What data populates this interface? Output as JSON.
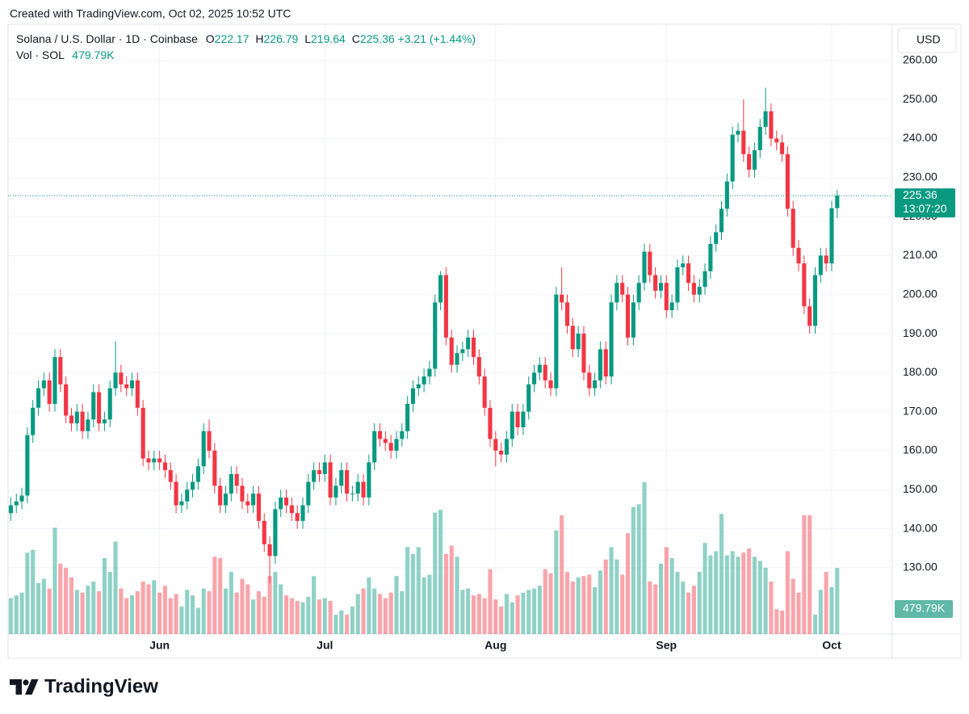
{
  "chart_data": {
    "type": "candlestick",
    "created": "Created with TradingView.com, Oct 02, 2025 10:52 UTC",
    "title": "Solana / U.S. Dollar · 1D · Coinbase",
    "ohlc_labels": [
      "O",
      "H",
      "L",
      "C"
    ],
    "change": "+3.21 (+1.44%)",
    "volume_title": "Vol · SOL",
    "currency": "USD",
    "countdown": "13:07:20",
    "brand": "TradingView",
    "up_color": "#089981",
    "down_color": "#f23645",
    "grid": true,
    "xlim": [
      -0.5,
      160
    ],
    "ylim": [
      113,
      269.3
    ],
    "xticks": [
      {
        "value": 27,
        "label": "Jun"
      },
      {
        "value": 57,
        "label": "Jul"
      },
      {
        "value": 88,
        "label": "Aug"
      },
      {
        "value": 119,
        "label": "Sep"
      },
      {
        "value": 149,
        "label": "Oct"
      }
    ],
    "yticks": [
      {
        "value": 130,
        "label": "130.00"
      },
      {
        "value": 140,
        "label": "140.00"
      },
      {
        "value": 150,
        "label": "150.00"
      },
      {
        "value": 160,
        "label": "160.00"
      },
      {
        "value": 170,
        "label": "170.00"
      },
      {
        "value": 180,
        "label": "180.00"
      },
      {
        "value": 190,
        "label": "190.00"
      },
      {
        "value": 200,
        "label": "200.00"
      },
      {
        "value": 210,
        "label": "210.00"
      },
      {
        "value": 220,
        "label": "220.00"
      },
      {
        "value": 230,
        "label": "230.00"
      },
      {
        "value": 240,
        "label": "240.00"
      },
      {
        "value": 250,
        "label": "250.00"
      },
      {
        "value": 260,
        "label": "260.00"
      }
    ],
    "x": [
      0,
      1,
      2,
      3,
      4,
      5,
      6,
      7,
      8,
      9,
      10,
      11,
      12,
      13,
      14,
      15,
      16,
      17,
      18,
      19,
      20,
      21,
      22,
      23,
      24,
      25,
      26,
      27,
      28,
      29,
      30,
      31,
      32,
      33,
      34,
      35,
      36,
      37,
      38,
      39,
      40,
      41,
      42,
      43,
      44,
      45,
      46,
      47,
      48,
      49,
      50,
      51,
      52,
      53,
      54,
      55,
      56,
      57,
      58,
      59,
      60,
      61,
      62,
      63,
      64,
      65,
      66,
      67,
      68,
      69,
      70,
      71,
      72,
      73,
      74,
      75,
      76,
      77,
      78,
      79,
      80,
      81,
      82,
      83,
      84,
      85,
      86,
      87,
      88,
      89,
      90,
      91,
      92,
      93,
      94,
      95,
      96,
      97,
      98,
      99,
      100,
      101,
      102,
      103,
      104,
      105,
      106,
      107,
      108,
      109,
      110,
      111,
      112,
      113,
      114,
      115,
      116,
      117,
      118,
      119,
      120,
      121,
      122,
      123,
      124,
      125,
      126,
      127,
      128,
      129,
      130,
      131,
      132,
      133,
      134,
      135,
      136,
      137,
      138,
      139,
      140,
      141,
      142,
      143,
      144,
      145,
      146,
      147,
      148,
      149,
      150
    ],
    "open": [
      144,
      146,
      147,
      148.5,
      164,
      171,
      176,
      178,
      172,
      184,
      177,
      169,
      167,
      170,
      165,
      168,
      175,
      167,
      168,
      176,
      180,
      177,
      176,
      178,
      171,
      158,
      157,
      158,
      157,
      155,
      152,
      146,
      147,
      150,
      152,
      156,
      165,
      160,
      151,
      146,
      149,
      154,
      151,
      147,
      146,
      149,
      142,
      136,
      133,
      145,
      148,
      146,
      144,
      142,
      146,
      152,
      155,
      154,
      157,
      148,
      151,
      155,
      149,
      149,
      152,
      148,
      157,
      165,
      163,
      162,
      160,
      163,
      165,
      172,
      176,
      177,
      179,
      181,
      198,
      205,
      189,
      182,
      185,
      186,
      189,
      184,
      179,
      171,
      163,
      160,
      159,
      163,
      170,
      166,
      170,
      177,
      180,
      182,
      178,
      176,
      200,
      198,
      192,
      186,
      190,
      180,
      176,
      178,
      186,
      179,
      198,
      203,
      200,
      189,
      198,
      203,
      211,
      205,
      201,
      203,
      196,
      198,
      207,
      208,
      203,
      200,
      202,
      206,
      213,
      216,
      222,
      229,
      241,
      242,
      236,
      232,
      237,
      243,
      247,
      240,
      239,
      236,
      222,
      212,
      208,
      197,
      192,
      205,
      210,
      208,
      222.17
    ],
    "high": [
      148,
      149,
      150.5,
      166,
      173,
      178,
      180,
      180,
      186,
      186,
      179,
      171,
      172,
      172,
      170,
      177,
      177,
      170,
      178,
      188,
      182,
      179,
      180,
      180,
      173,
      160,
      160,
      160,
      159,
      157,
      154,
      149,
      152,
      154,
      158,
      167,
      168,
      162,
      153,
      151,
      156,
      156,
      153,
      149,
      151,
      151,
      144,
      138,
      147,
      150,
      150,
      148,
      146,
      148,
      154,
      157,
      157,
      159,
      159,
      153,
      157,
      157,
      151,
      154,
      154,
      159,
      167,
      167,
      165,
      164,
      165,
      167,
      174,
      178,
      179,
      181,
      183,
      200,
      206,
      207,
      191,
      187,
      188,
      191,
      191,
      186,
      181,
      173,
      165,
      162,
      165,
      172,
      172,
      172,
      179,
      182,
      184,
      184,
      180,
      202,
      207,
      200,
      194,
      192,
      192,
      182,
      180,
      188,
      188,
      200,
      205,
      205,
      202,
      200,
      205,
      213,
      213,
      207,
      205,
      205,
      200,
      209,
      210,
      210,
      205,
      204,
      208,
      215,
      218,
      224,
      231,
      243,
      244,
      250,
      238,
      239,
      245,
      253,
      249,
      242,
      241,
      238,
      224,
      214,
      210,
      199,
      207,
      212,
      212,
      224,
      226.79
    ],
    "low": [
      142,
      144,
      145,
      146.5,
      162,
      169,
      174,
      170,
      170,
      175,
      167,
      165,
      165,
      163,
      163,
      166,
      165,
      165,
      166,
      174,
      175,
      174,
      174,
      169,
      156,
      155,
      155,
      155,
      153,
      150,
      144,
      144,
      145,
      148,
      150,
      154,
      158,
      149,
      144,
      144,
      147,
      149,
      145,
      144,
      144,
      140,
      134,
      126,
      131,
      143,
      144,
      142,
      140,
      140,
      144,
      150,
      152,
      152,
      146,
      146,
      149,
      147,
      147,
      147,
      146,
      146,
      155,
      161,
      160,
      158,
      158,
      161,
      163,
      170,
      174,
      175,
      177,
      179,
      196,
      187,
      180,
      180,
      183,
      184,
      182,
      177,
      169,
      161,
      156,
      157,
      157,
      161,
      164,
      164,
      168,
      175,
      178,
      176,
      174,
      174,
      196,
      190,
      184,
      184,
      178,
      174,
      174,
      176,
      177,
      177,
      196,
      198,
      187,
      187,
      196,
      201,
      203,
      199,
      199,
      194,
      194,
      196,
      205,
      201,
      198,
      198,
      200,
      204,
      211,
      214,
      220,
      227,
      239,
      234,
      230,
      230,
      235,
      241,
      238,
      237,
      234,
      220,
      210,
      206,
      195,
      190,
      190,
      203,
      206,
      206,
      219.64
    ],
    "close": [
      146,
      147,
      148.5,
      164,
      171,
      176,
      178,
      172,
      184,
      177,
      169,
      167,
      170,
      165,
      168,
      175,
      167,
      168,
      176,
      180,
      177,
      176,
      178,
      171,
      158,
      157,
      158,
      157,
      155,
      152,
      146,
      147,
      150,
      152,
      156,
      165,
      160,
      151,
      146,
      149,
      154,
      151,
      147,
      146,
      149,
      142,
      136,
      133,
      145,
      148,
      146,
      144,
      142,
      146,
      152,
      155,
      154,
      157,
      148,
      151,
      155,
      149,
      149,
      152,
      148,
      157,
      165,
      163,
      162,
      160,
      163,
      165,
      172,
      176,
      177,
      179,
      181,
      198,
      205,
      189,
      182,
      185,
      186,
      189,
      184,
      179,
      171,
      163,
      160,
      159,
      163,
      170,
      166,
      170,
      177,
      180,
      182,
      178,
      176,
      200,
      198,
      192,
      186,
      190,
      180,
      176,
      178,
      186,
      179,
      198,
      203,
      200,
      189,
      198,
      203,
      211,
      205,
      201,
      203,
      196,
      198,
      207,
      208,
      203,
      200,
      202,
      206,
      213,
      216,
      222,
      229,
      241,
      242,
      236,
      232,
      237,
      243,
      247,
      240,
      239,
      236,
      222,
      212,
      208,
      197,
      192,
      205,
      210,
      208,
      222.15,
      225.36
    ],
    "volume": {
      "values": [
        260,
        280,
        300,
        590,
        610,
        370,
        400,
        330,
        770,
        510,
        480,
        410,
        320,
        300,
        350,
        380,
        310,
        550,
        450,
        670,
        330,
        260,
        280,
        310,
        380,
        360,
        390,
        300,
        350,
        260,
        290,
        200,
        320,
        280,
        190,
        330,
        310,
        560,
        550,
        330,
        450,
        300,
        400,
        360,
        250,
        310,
        270,
        420,
        450,
        360,
        280,
        260,
        240,
        230,
        270,
        420,
        250,
        260,
        240,
        140,
        170,
        140,
        200,
        290,
        330,
        410,
        330,
        290,
        260,
        300,
        420,
        310,
        630,
        580,
        630,
        410,
        430,
        880,
        900,
        580,
        640,
        560,
        320,
        330,
        280,
        290,
        260,
        470,
        250,
        200,
        290,
        230,
        280,
        300,
        320,
        330,
        350,
        470,
        440,
        750,
        860,
        450,
        380,
        410,
        420,
        430,
        340,
        460,
        540,
        630,
        540,
        430,
        730,
        920,
        940,
        1100,
        380,
        360,
        510,
        630,
        550,
        450,
        380,
        300,
        350,
        450,
        660,
        570,
        600,
        870,
        570,
        600,
        560,
        590,
        620,
        560,
        530,
        480,
        380,
        180,
        170,
        600,
        400,
        300,
        860,
        860,
        140,
        320,
        450,
        340,
        479.79
      ],
      "last_label": "479.79K"
    }
  }
}
